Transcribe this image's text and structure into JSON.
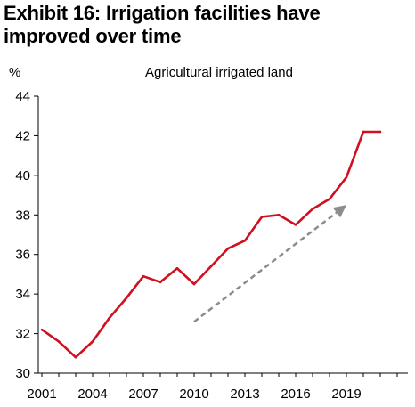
{
  "title_line1": "Exhibit 16: Irrigation facilities have",
  "title_line2": "improved over time",
  "chart_data": {
    "type": "line",
    "title": "Exhibit 16: Irrigation facilities have improved over time",
    "subtitle": "Agricultural irrigated land",
    "ylabel": "%",
    "xlabel": "",
    "ylim": [
      30,
      44
    ],
    "xlim": [
      2001,
      2022
    ],
    "yticks": [
      30,
      32,
      34,
      36,
      38,
      40,
      42,
      44
    ],
    "xticks": [
      2001,
      2004,
      2007,
      2010,
      2013,
      2016,
      2019
    ],
    "grid": false,
    "line_color": "#d0101f",
    "arrow_color": "#8c8c8c",
    "series": [
      {
        "x": [
          2001,
          2002,
          2003,
          2004,
          2005,
          2006,
          2007,
          2008,
          2009,
          2010,
          2011,
          2012,
          2013,
          2014,
          2015,
          2016,
          2017,
          2018,
          2019,
          2020,
          2021
        ],
        "values": [
          32.2,
          31.6,
          30.8,
          31.6,
          32.8,
          33.8,
          34.9,
          34.6,
          35.3,
          34.5,
          35.4,
          36.3,
          36.7,
          37.9,
          38.0,
          37.5,
          38.3,
          38.8,
          39.9,
          42.2,
          42.2
        ]
      }
    ],
    "annotation": {
      "type": "dashed-arrow",
      "from": [
        2010,
        32.6
      ],
      "to": [
        2019,
        38.5
      ]
    }
  }
}
